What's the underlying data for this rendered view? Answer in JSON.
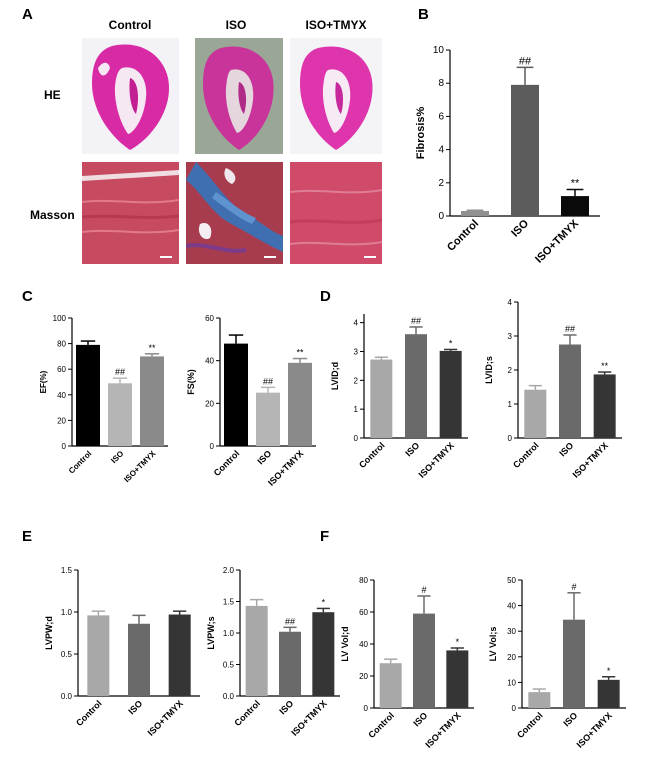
{
  "panel_letters": [
    "A",
    "B",
    "C",
    "D",
    "E",
    "F"
  ],
  "panel_a": {
    "columns": [
      "Control",
      "ISO",
      "ISO+TMYX"
    ],
    "rows": [
      "HE",
      "Masson"
    ]
  },
  "chart_data": [
    {
      "id": "B",
      "type": "bar",
      "categories": [
        "Control",
        "ISO",
        "ISO+TMYX"
      ],
      "values": [
        0.3,
        7.9,
        1.2
      ],
      "errors": [
        0.05,
        1.05,
        0.4
      ],
      "sig": [
        "",
        "##",
        "**"
      ],
      "colors": [
        "#909090",
        "#5c5c5c",
        "#0a0a0a"
      ],
      "ylabel": "Fibrosis%",
      "ylim": [
        0,
        10
      ],
      "yticks": [
        0,
        2,
        4,
        6,
        8,
        10
      ],
      "tick_labels": [
        "0",
        "2",
        "4",
        "6",
        "8",
        "10"
      ]
    },
    {
      "id": "C1",
      "type": "bar",
      "categories": [
        "Control",
        "ISO",
        "ISO+TMYX"
      ],
      "values": [
        79,
        49,
        70
      ],
      "errors": [
        3,
        4,
        2
      ],
      "sig": [
        "",
        "##",
        "**"
      ],
      "colors": [
        "#000000",
        "#b5b5b5",
        "#8a8a8a"
      ],
      "ylabel": "EF(%)",
      "ylim": [
        0,
        100
      ],
      "yticks": [
        0,
        20,
        40,
        60,
        80,
        100
      ],
      "tick_labels": [
        "0",
        "20",
        "40",
        "60",
        "80",
        "100"
      ]
    },
    {
      "id": "C2",
      "type": "bar",
      "categories": [
        "Control",
        "ISO",
        "ISO+TMYX"
      ],
      "values": [
        48,
        25,
        39
      ],
      "errors": [
        4,
        2.5,
        2
      ],
      "sig": [
        "",
        "##",
        "**"
      ],
      "colors": [
        "#000000",
        "#b5b5b5",
        "#8a8a8a"
      ],
      "ylabel": "FS(%)",
      "ylim": [
        0,
        60
      ],
      "yticks": [
        0,
        20,
        40,
        60
      ],
      "tick_labels": [
        "0",
        "20",
        "40",
        "60"
      ]
    },
    {
      "id": "D1",
      "type": "bar",
      "categories": [
        "Control",
        "ISO",
        "ISO+TMYX"
      ],
      "values": [
        2.72,
        3.6,
        3.02
      ],
      "errors": [
        0.08,
        0.25,
        0.05
      ],
      "sig": [
        "",
        "##",
        "*"
      ],
      "colors": [
        "#a8a8a8",
        "#6a6a6a",
        "#353535"
      ],
      "ylabel": "LVID;d",
      "ylim": [
        0,
        4.3
      ],
      "yticks": [
        0,
        1,
        2,
        3,
        4
      ],
      "tick_labels": [
        "0",
        "1",
        "2",
        "3",
        "4"
      ]
    },
    {
      "id": "D2",
      "type": "bar",
      "categories": [
        "Control",
        "ISO",
        "ISO+TMYX"
      ],
      "values": [
        1.42,
        2.75,
        1.87
      ],
      "errors": [
        0.12,
        0.28,
        0.07
      ],
      "sig": [
        "",
        "##",
        "**"
      ],
      "colors": [
        "#a8a8a8",
        "#6a6a6a",
        "#353535"
      ],
      "ylabel": "LVID;s",
      "ylim": [
        0,
        4
      ],
      "yticks": [
        0,
        1,
        2,
        3,
        4
      ],
      "tick_labels": [
        "0",
        "1",
        "2",
        "3",
        "4"
      ]
    },
    {
      "id": "E1",
      "type": "bar",
      "categories": [
        "Control",
        "ISO",
        "ISO+TMYX"
      ],
      "values": [
        0.96,
        0.86,
        0.97
      ],
      "errors": [
        0.05,
        0.1,
        0.04
      ],
      "sig": [
        "",
        "",
        ""
      ],
      "colors": [
        "#a8a8a8",
        "#6a6a6a",
        "#353535"
      ],
      "ylabel": "LVPW;d",
      "ylim": [
        0,
        1.5
      ],
      "yticks": [
        0,
        0.5,
        1.0,
        1.5
      ],
      "tick_labels": [
        "0.0",
        "0.5",
        "1.0",
        "1.5"
      ]
    },
    {
      "id": "E2",
      "type": "bar",
      "categories": [
        "Control",
        "ISO",
        "ISO+TMYX"
      ],
      "values": [
        1.43,
        1.02,
        1.33
      ],
      "errors": [
        0.1,
        0.07,
        0.06
      ],
      "sig": [
        "",
        "##",
        "*"
      ],
      "colors": [
        "#a8a8a8",
        "#6a6a6a",
        "#353535"
      ],
      "ylabel": "LVPW;s",
      "ylim": [
        0,
        2.0
      ],
      "yticks": [
        0,
        0.5,
        1.0,
        1.5,
        2.0
      ],
      "tick_labels": [
        "0.0",
        "0.5",
        "1.0",
        "1.5",
        "2.0"
      ]
    },
    {
      "id": "F1",
      "type": "bar",
      "categories": [
        "Control",
        "ISO",
        "ISO+TMYX"
      ],
      "values": [
        28,
        59,
        36
      ],
      "errors": [
        2.5,
        11,
        1.5
      ],
      "sig": [
        "",
        "#",
        "*"
      ],
      "colors": [
        "#a8a8a8",
        "#6a6a6a",
        "#353535"
      ],
      "ylabel": "LV Vol;d",
      "ylim": [
        0,
        80
      ],
      "yticks": [
        0,
        20,
        40,
        60,
        80
      ],
      "tick_labels": [
        "0",
        "20",
        "40",
        "60",
        "80"
      ]
    },
    {
      "id": "F2",
      "type": "bar",
      "categories": [
        "Control",
        "ISO",
        "ISO+TMYX"
      ],
      "values": [
        6.2,
        34.5,
        11
      ],
      "errors": [
        1.2,
        10.5,
        1.2
      ],
      "sig": [
        "",
        "#",
        "*"
      ],
      "colors": [
        "#a8a8a8",
        "#6a6a6a",
        "#353535"
      ],
      "ylabel": "LV Vol;s",
      "ylim": [
        0,
        50
      ],
      "yticks": [
        0,
        10,
        20,
        30,
        40,
        50
      ],
      "tick_labels": [
        "0",
        "10",
        "20",
        "30",
        "40",
        "50"
      ]
    }
  ]
}
